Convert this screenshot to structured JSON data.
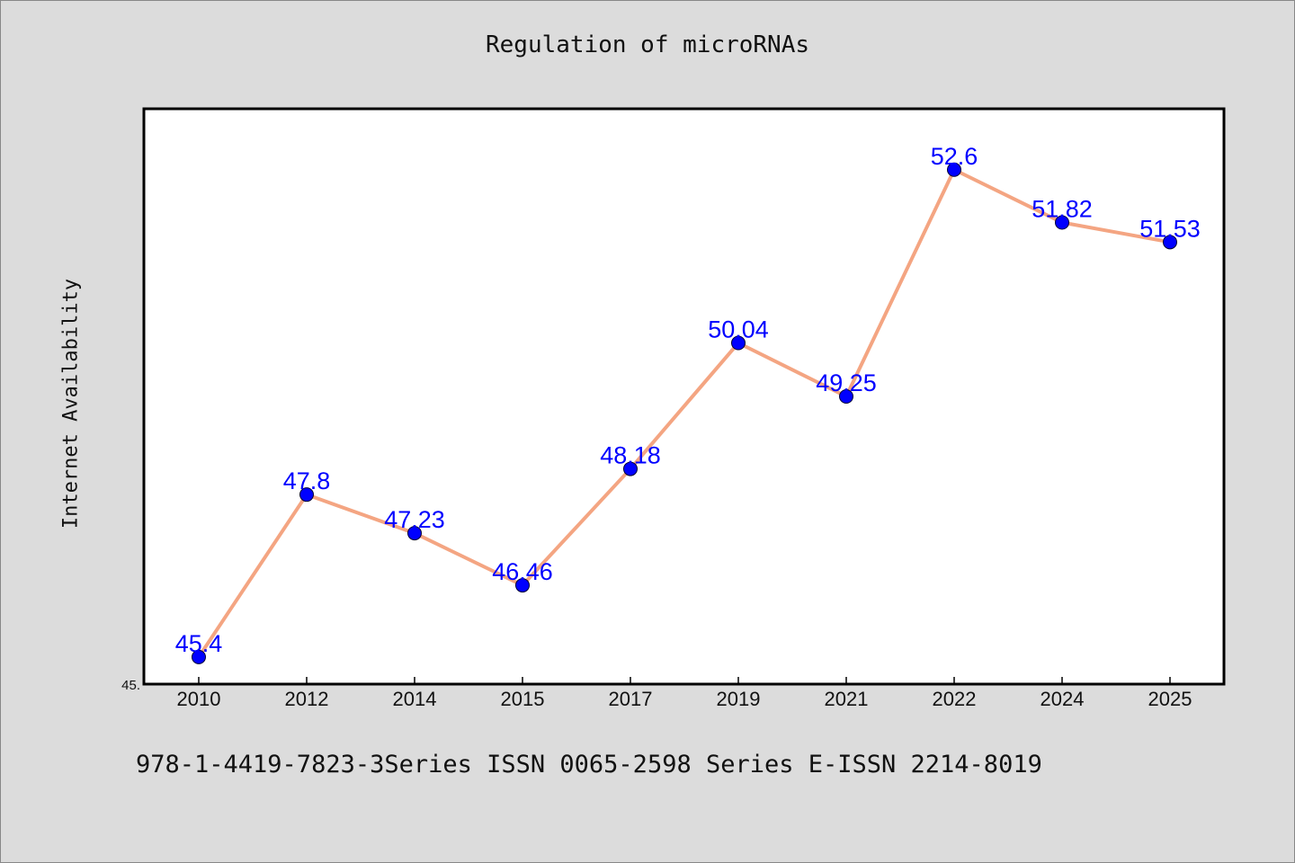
{
  "chart_data": {
    "type": "line",
    "title": "Regulation of microRNAs",
    "xlabel": "",
    "ylabel": "Internet Availability",
    "categories": [
      "2010",
      "2012",
      "2014",
      "2015",
      "2017",
      "2019",
      "2021",
      "2022",
      "2024",
      "2025"
    ],
    "series": [
      {
        "values": [
          45.4,
          47.8,
          47.23,
          46.46,
          48.18,
          50.04,
          49.25,
          52.6,
          51.82,
          51.53
        ],
        "point_labels": [
          "45.4",
          "47.8",
          "47.23",
          "46.46",
          "48.18",
          "50.04",
          "49.25",
          "52.6",
          "51.82",
          "51.53"
        ],
        "line_color": "#f4a582",
        "marker_color": "#0000ff"
      }
    ],
    "ytick_labels": [
      "45."
    ],
    "ylim": [
      45,
      53.5
    ],
    "grid": false,
    "label_color": "#0000ff"
  },
  "footer": {
    "text": "978-1-4419-7823-3Series ISSN 0065-2598 Series E-ISSN 2214-8019"
  }
}
